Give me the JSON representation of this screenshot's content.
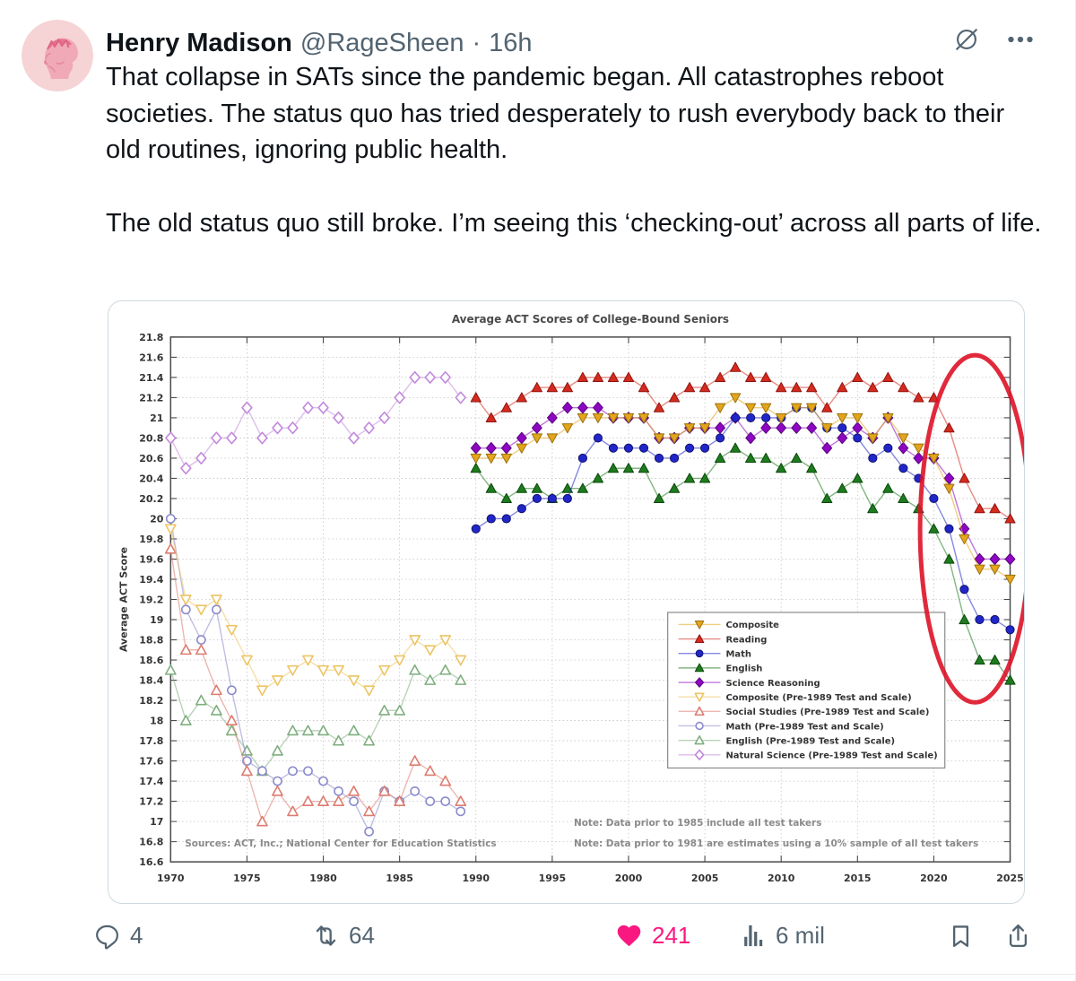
{
  "tweet": {
    "author": {
      "name": "Henry Madison",
      "handle": "@RageSheen",
      "separator": "·",
      "time": "16h"
    },
    "body_paragraphs": [
      "That collapse in SATs since the pandemic began. All catastrophes reboot societies. The status quo has tried desperately to rush everybody back to their old routines, ignoring public health.",
      "The old status quo still broke. I’m seeing this ‘checking-out’ across all parts of life."
    ],
    "actions": {
      "reply_count": "4",
      "retweet_count": "64",
      "like_count": "241",
      "views": "6 mil"
    }
  },
  "icons": {
    "header": [
      "grok-icon",
      "more-icon"
    ],
    "actions": [
      "reply-icon",
      "retweet-icon",
      "heart-icon",
      "views-icon",
      "bookmark-icon",
      "share-icon"
    ]
  },
  "colors": {
    "accent_like": "#F91880",
    "text_primary": "#0F1419",
    "text_secondary": "#536471",
    "media_border": "#CFD9DE",
    "annotation_red": "#DD1327"
  },
  "chart_data": {
    "type": "line",
    "title": "Average ACT Scores of College-Bound Seniors",
    "ylabel": "Average ACT Score",
    "ylim": [
      16.6,
      21.8
    ],
    "ytick_step": 0.2,
    "xlim": [
      1970,
      2025
    ],
    "xticks": [
      1970,
      1975,
      1980,
      1985,
      1990,
      1995,
      2000,
      2005,
      2010,
      2015,
      2020,
      2025
    ],
    "grid": "dotted",
    "legend_position": "center-right",
    "notes": [
      "Note: Data prior to 1985 include all test takers",
      "Note: Data prior to 1981 are estimates using a 10% sample of all test takers"
    ],
    "sources": "Sources: ACT, Inc.; National Center for Education Statistics",
    "annotation": {
      "shape": "ellipse",
      "color": "#DD1327",
      "center_year": 2022.7,
      "center_value": 19.9,
      "rx_years": 3.6,
      "ry_score": 1.72
    },
    "series": [
      {
        "name": "Composite",
        "marker": "triangle-down",
        "filled": true,
        "color": "#E3A51B",
        "edge": "#9C7210",
        "start_year": 1990,
        "values": [
          20.6,
          20.6,
          20.6,
          20.7,
          20.8,
          20.8,
          20.9,
          21.0,
          21.0,
          21.0,
          21.0,
          21.0,
          20.8,
          20.8,
          20.9,
          20.9,
          21.1,
          21.2,
          21.1,
          21.1,
          21.0,
          21.1,
          21.1,
          20.9,
          21.0,
          21.0,
          20.8,
          21.0,
          20.8,
          20.7,
          20.6,
          20.3,
          19.8,
          19.5,
          19.5,
          19.4
        ]
      },
      {
        "name": "Reading",
        "marker": "triangle-up",
        "filled": true,
        "color": "#D42B1E",
        "edge": "#8E1410",
        "start_year": 1990,
        "values": [
          21.2,
          21.0,
          21.1,
          21.2,
          21.3,
          21.3,
          21.3,
          21.4,
          21.4,
          21.4,
          21.4,
          21.3,
          21.1,
          21.2,
          21.3,
          21.3,
          21.4,
          21.5,
          21.4,
          21.4,
          21.3,
          21.3,
          21.3,
          21.1,
          21.3,
          21.4,
          21.3,
          21.4,
          21.3,
          21.2,
          21.2,
          20.9,
          20.4,
          20.1,
          20.1,
          20.0
        ]
      },
      {
        "name": "Math",
        "marker": "circle",
        "filled": true,
        "color": "#2026C8",
        "edge": "#12126E",
        "start_year": 1990,
        "values": [
          19.9,
          20.0,
          20.0,
          20.1,
          20.2,
          20.2,
          20.2,
          20.6,
          20.8,
          20.7,
          20.7,
          20.7,
          20.6,
          20.6,
          20.7,
          20.7,
          20.8,
          21.0,
          21.0,
          21.0,
          21.0,
          21.1,
          21.1,
          20.9,
          20.9,
          20.8,
          20.6,
          20.7,
          20.5,
          20.4,
          20.2,
          19.9,
          19.3,
          19.0,
          19.0,
          18.9
        ]
      },
      {
        "name": "English",
        "marker": "triangle-up",
        "filled": true,
        "color": "#1E7A1E",
        "edge": "#0C4A0C",
        "start_year": 1990,
        "values": [
          20.5,
          20.3,
          20.2,
          20.3,
          20.3,
          20.2,
          20.3,
          20.3,
          20.4,
          20.5,
          20.5,
          20.5,
          20.2,
          20.3,
          20.4,
          20.4,
          20.6,
          20.7,
          20.6,
          20.6,
          20.5,
          20.6,
          20.5,
          20.2,
          20.3,
          20.4,
          20.1,
          20.3,
          20.2,
          20.1,
          19.9,
          19.6,
          19.0,
          18.6,
          18.6,
          18.4
        ]
      },
      {
        "name": "Science Reasoning",
        "marker": "diamond",
        "filled": true,
        "color": "#8E06C2",
        "edge": "#56067A",
        "start_year": 1990,
        "values": [
          20.7,
          20.7,
          20.7,
          20.8,
          20.9,
          21.0,
          21.1,
          21.1,
          21.1,
          21.0,
          21.0,
          21.0,
          20.8,
          20.8,
          20.9,
          20.9,
          20.9,
          21.0,
          20.8,
          20.9,
          20.9,
          20.9,
          20.9,
          20.7,
          20.8,
          20.9,
          20.8,
          21.0,
          20.7,
          20.6,
          20.6,
          20.4,
          19.9,
          19.6,
          19.6,
          19.6
        ]
      },
      {
        "name": "Composite (Pre-1989 Test and Scale)",
        "marker": "triangle-down",
        "filled": false,
        "color": "#ECC463",
        "edge": "#ECC463",
        "start_year": 1970,
        "values": [
          19.9,
          19.2,
          19.1,
          19.2,
          18.9,
          18.6,
          18.3,
          18.4,
          18.5,
          18.6,
          18.5,
          18.5,
          18.4,
          18.3,
          18.5,
          18.6,
          18.8,
          18.7,
          18.8,
          18.6
        ]
      },
      {
        "name": "Social Studies (Pre-1989 Test and Scale)",
        "marker": "triangle-up",
        "filled": false,
        "color": "#DD7C70",
        "edge": "#DD7C70",
        "start_year": 1970,
        "values": [
          19.7,
          18.7,
          18.7,
          18.3,
          18.0,
          17.5,
          17.0,
          17.3,
          17.1,
          17.2,
          17.2,
          17.2,
          17.3,
          17.1,
          17.3,
          17.2,
          17.6,
          17.5,
          17.4,
          17.2
        ]
      },
      {
        "name": "Math (Pre-1989 Test and Scale)",
        "marker": "circle",
        "filled": false,
        "color": "#8A8ACC",
        "edge": "#8A8ACC",
        "start_year": 1970,
        "values": [
          20.0,
          19.1,
          18.8,
          19.1,
          18.3,
          17.6,
          17.5,
          17.4,
          17.5,
          17.5,
          17.4,
          17.3,
          17.2,
          16.9,
          17.3,
          17.2,
          17.3,
          17.2,
          17.2,
          17.1
        ]
      },
      {
        "name": "English (Pre-1989 Test and Scale)",
        "marker": "triangle-up",
        "filled": false,
        "color": "#7FAE7F",
        "edge": "#7FAE7F",
        "start_year": 1970,
        "values": [
          18.5,
          18.0,
          18.2,
          18.1,
          17.9,
          17.7,
          17.5,
          17.7,
          17.9,
          17.9,
          17.9,
          17.8,
          17.9,
          17.8,
          18.1,
          18.1,
          18.5,
          18.4,
          18.5,
          18.4
        ]
      },
      {
        "name": "Natural Science (Pre-1989 Test and Scale)",
        "marker": "diamond",
        "filled": false,
        "color": "#C288DC",
        "edge": "#C288DC",
        "start_year": 1970,
        "values": [
          20.8,
          20.5,
          20.6,
          20.8,
          20.8,
          21.1,
          20.8,
          20.9,
          20.9,
          21.1,
          21.1,
          21.0,
          20.8,
          20.9,
          21.0,
          21.2,
          21.4,
          21.4,
          21.4,
          21.2
        ]
      }
    ]
  }
}
